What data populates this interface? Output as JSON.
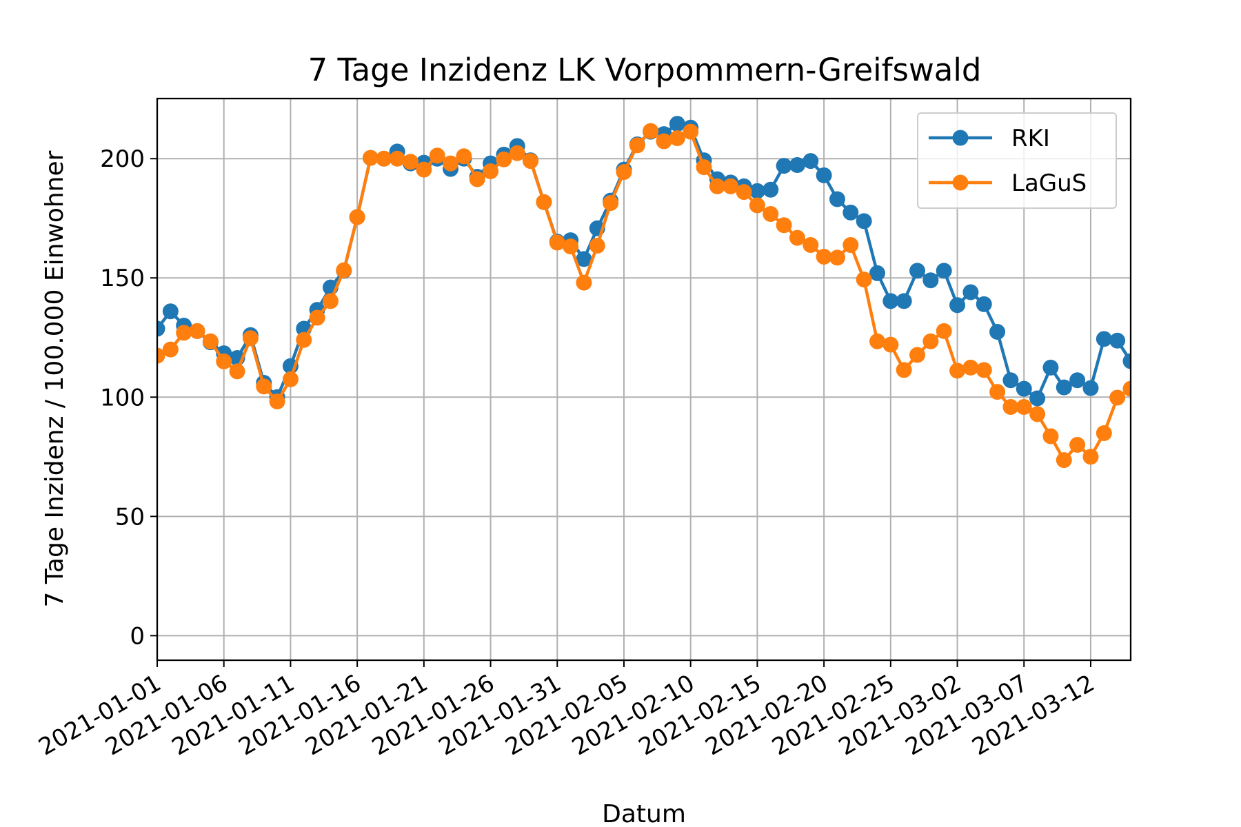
{
  "chart_data": {
    "type": "line",
    "title": "7 Tage Inzidenz LK Vorpommern-Greifswald",
    "x_label": "Datum",
    "y_label": "7 Tage Inzidenz / 100.000 Einwohner",
    "x": [
      "2021-01-01",
      "2021-01-02",
      "2021-01-03",
      "2021-01-04",
      "2021-01-05",
      "2021-01-06",
      "2021-01-07",
      "2021-01-08",
      "2021-01-09",
      "2021-01-10",
      "2021-01-11",
      "2021-01-12",
      "2021-01-13",
      "2021-01-14",
      "2021-01-15",
      "2021-01-16",
      "2021-01-17",
      "2021-01-18",
      "2021-01-19",
      "2021-01-20",
      "2021-01-21",
      "2021-01-22",
      "2021-01-23",
      "2021-01-24",
      "2021-01-25",
      "2021-01-26",
      "2021-01-27",
      "2021-01-28",
      "2021-01-29",
      "2021-01-30",
      "2021-01-31",
      "2021-02-01",
      "2021-02-02",
      "2021-02-03",
      "2021-02-04",
      "2021-02-05",
      "2021-02-06",
      "2021-02-07",
      "2021-02-08",
      "2021-02-09",
      "2021-02-10",
      "2021-02-11",
      "2021-02-12",
      "2021-02-13",
      "2021-02-14",
      "2021-02-15",
      "2021-02-16",
      "2021-02-17",
      "2021-02-18",
      "2021-02-19",
      "2021-02-20",
      "2021-02-21",
      "2021-02-22",
      "2021-02-23",
      "2021-02-24",
      "2021-02-25",
      "2021-02-26",
      "2021-02-27",
      "2021-02-28",
      "2021-03-01",
      "2021-03-02",
      "2021-03-03",
      "2021-03-04",
      "2021-03-05",
      "2021-03-06",
      "2021-03-07",
      "2021-03-08",
      "2021-03-09",
      "2021-03-10",
      "2021-03-11",
      "2021-03-12",
      "2021-03-13",
      "2021-03-14",
      "2021-03-15"
    ],
    "series": [
      {
        "name": "RKI",
        "color": "#1f77b4",
        "values": [
          128.7,
          136,
          130,
          127.7,
          123,
          118.4,
          116.4,
          126,
          106,
          100,
          113,
          128.7,
          136.6,
          146,
          153,
          175.5,
          200.3,
          200,
          203,
          198,
          198.3,
          200,
          195.7,
          200,
          192.4,
          198,
          201.7,
          205.3,
          199.3,
          181.8,
          165.2,
          165.8,
          157.9,
          170.8,
          182.4,
          195.4,
          206,
          211.3,
          210.3,
          214.6,
          213,
          199.3,
          191.4,
          190,
          188.4,
          186.4,
          187,
          197,
          197.3,
          199,
          193,
          183,
          177.4,
          173.8,
          152,
          140.3,
          140.3,
          153,
          149,
          153,
          138.6,
          144,
          139,
          127.4,
          107.1,
          103.5,
          99.5,
          112.4,
          104.1,
          107.1,
          103.8,
          124.4,
          123.7,
          115.1
        ]
      },
      {
        "name": "LaGuS",
        "color": "#ff7f0e",
        "values": [
          117.4,
          120,
          127,
          127.7,
          123.4,
          115,
          110.8,
          124.7,
          104.5,
          98.2,
          107.5,
          124,
          133.3,
          140.3,
          153.2,
          175.5,
          200.3,
          200,
          200,
          198.7,
          195.4,
          201.3,
          198,
          201,
          191.4,
          194.7,
          199.7,
          202.3,
          199,
          181.8,
          164.8,
          163.2,
          148,
          163.5,
          181.4,
          194.4,
          205.6,
          211.6,
          207.3,
          208.6,
          211.3,
          196.4,
          188.4,
          188.4,
          186,
          180.4,
          176.8,
          172.1,
          166.8,
          163.8,
          158.9,
          158.5,
          163.8,
          149.3,
          123.4,
          122,
          111.4,
          117.7,
          123.4,
          127.7,
          111.1,
          112.4,
          111.4,
          102.2,
          95.9,
          95.9,
          92.9,
          83.6,
          73.6,
          80,
          75,
          84.9,
          99.8,
          103.5
        ]
      }
    ],
    "xlim": [
      "2021-01-01",
      "2021-03-15"
    ],
    "xticks": [
      "2021-01-01",
      "2021-01-06",
      "2021-01-11",
      "2021-01-16",
      "2021-01-21",
      "2021-01-26",
      "2021-01-31",
      "2021-02-05",
      "2021-02-10",
      "2021-02-15",
      "2021-02-20",
      "2021-02-25",
      "2021-03-02",
      "2021-03-07",
      "2021-03-12"
    ],
    "ylim": [
      -10.3,
      225.2
    ],
    "yticks": [
      0,
      50,
      100,
      150,
      200
    ],
    "grid": true,
    "legend": "upper right"
  }
}
